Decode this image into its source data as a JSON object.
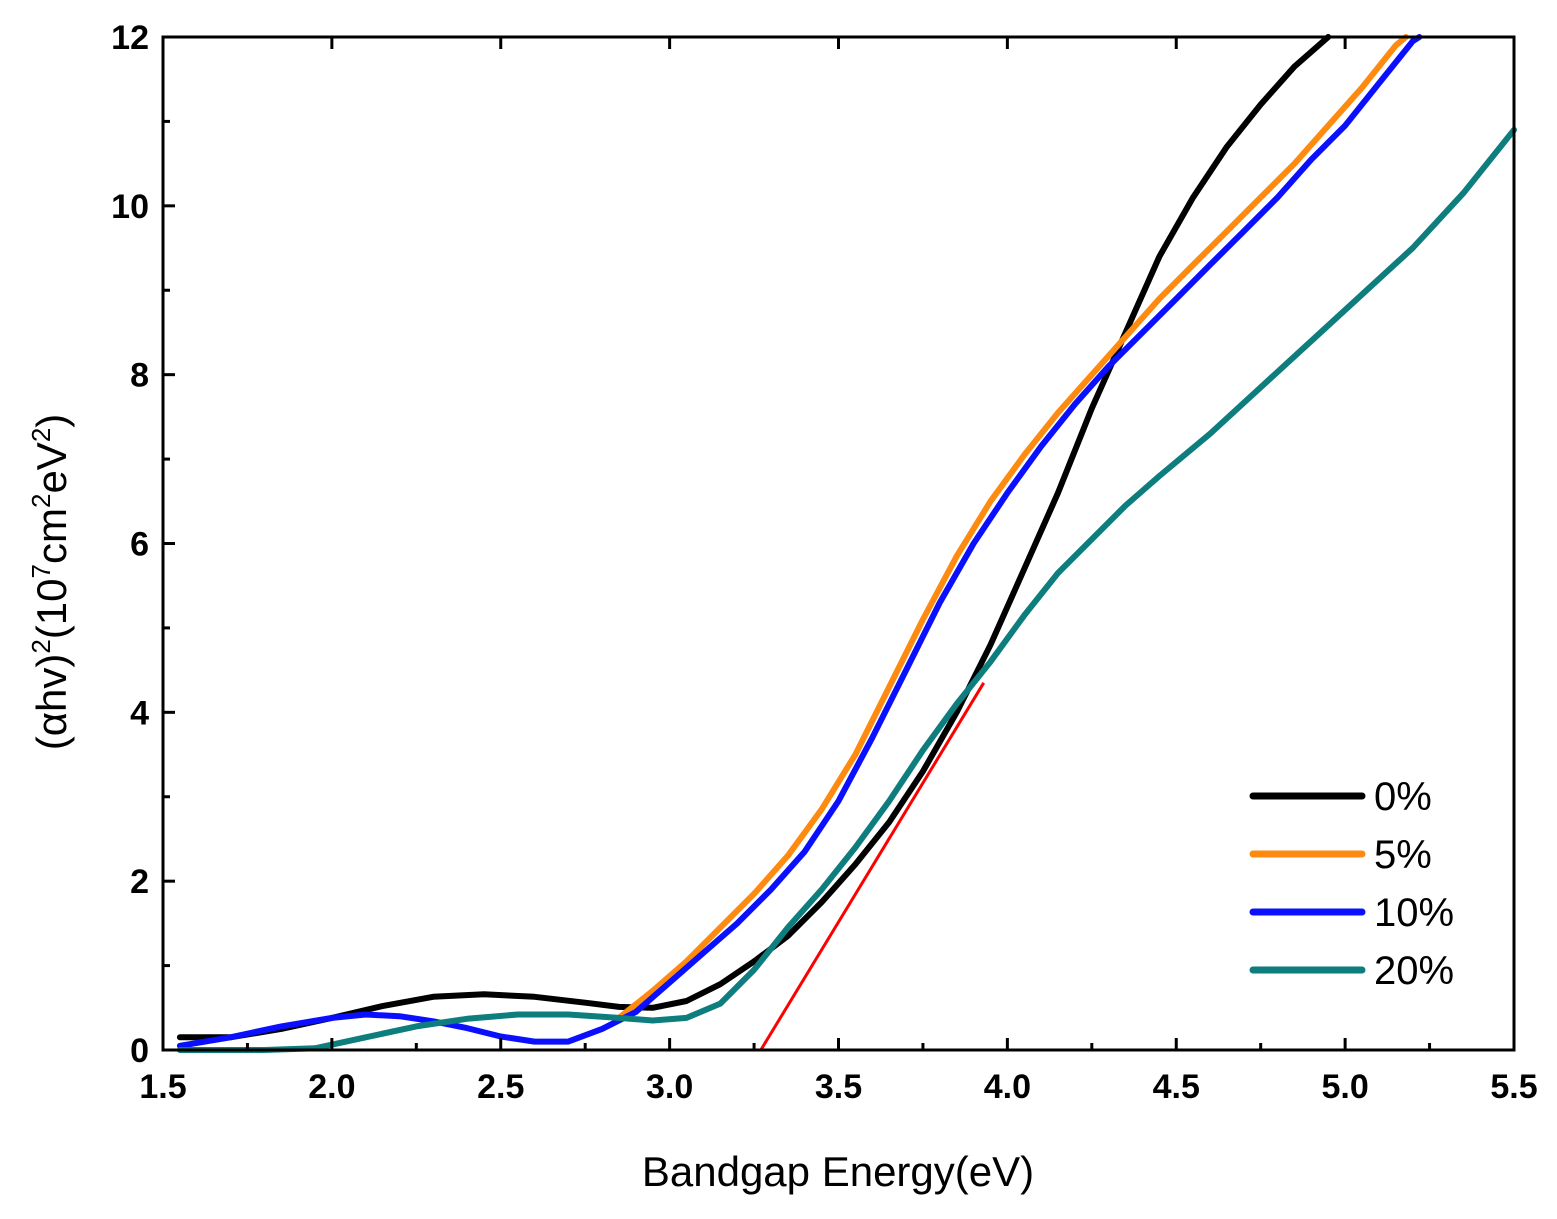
{
  "chart_data": {
    "type": "line",
    "title": "",
    "xlabel": "Bandgap Energy(eV)",
    "ylabel": {
      "open": "(",
      "alpha": "α",
      "hv": "hv)",
      "sup1": "2",
      "mid": "(10",
      "sup2": "7",
      "cm": "cm",
      "sup3": "2",
      "ev": "eV",
      "sup4": "2",
      "close": ")"
    },
    "xlim": [
      1.5,
      5.5
    ],
    "ylim": [
      0,
      12
    ],
    "xticks": [
      "1.5",
      "2.0",
      "2.5",
      "3.0",
      "3.5",
      "4.0",
      "4.5",
      "5.0",
      "5.5"
    ],
    "yticks": [
      "0",
      "2",
      "4",
      "6",
      "8",
      "10",
      "12"
    ],
    "legend_position": "bottom-right",
    "series": [
      {
        "name": "0%",
        "color": "#000000",
        "points": [
          [
            1.55,
            0.15
          ],
          [
            1.7,
            0.15
          ],
          [
            1.85,
            0.25
          ],
          [
            2.0,
            0.38
          ],
          [
            2.15,
            0.52
          ],
          [
            2.3,
            0.63
          ],
          [
            2.45,
            0.66
          ],
          [
            2.6,
            0.63
          ],
          [
            2.75,
            0.56
          ],
          [
            2.85,
            0.51
          ],
          [
            2.95,
            0.5
          ],
          [
            3.05,
            0.58
          ],
          [
            3.15,
            0.78
          ],
          [
            3.25,
            1.05
          ],
          [
            3.35,
            1.35
          ],
          [
            3.45,
            1.75
          ],
          [
            3.55,
            2.2
          ],
          [
            3.65,
            2.7
          ],
          [
            3.75,
            3.3
          ],
          [
            3.85,
            4.0
          ],
          [
            3.95,
            4.8
          ],
          [
            4.05,
            5.7
          ],
          [
            4.15,
            6.6
          ],
          [
            4.25,
            7.6
          ],
          [
            4.35,
            8.5
          ],
          [
            4.45,
            9.4
          ],
          [
            4.55,
            10.1
          ],
          [
            4.65,
            10.7
          ],
          [
            4.75,
            11.2
          ],
          [
            4.85,
            11.65
          ],
          [
            4.95,
            12.0
          ]
        ]
      },
      {
        "name": "5%",
        "color": "#ff8a10",
        "points": [
          [
            2.85,
            0.38
          ],
          [
            2.95,
            0.7
          ],
          [
            3.05,
            1.05
          ],
          [
            3.15,
            1.45
          ],
          [
            3.25,
            1.85
          ],
          [
            3.35,
            2.3
          ],
          [
            3.45,
            2.85
          ],
          [
            3.55,
            3.5
          ],
          [
            3.65,
            4.3
          ],
          [
            3.75,
            5.1
          ],
          [
            3.85,
            5.85
          ],
          [
            3.95,
            6.5
          ],
          [
            4.05,
            7.05
          ],
          [
            4.15,
            7.55
          ],
          [
            4.25,
            8.0
          ],
          [
            4.35,
            8.45
          ],
          [
            4.45,
            8.9
          ],
          [
            4.55,
            9.3
          ],
          [
            4.65,
            9.7
          ],
          [
            4.75,
            10.1
          ],
          [
            4.85,
            10.5
          ],
          [
            4.95,
            10.95
          ],
          [
            5.05,
            11.4
          ],
          [
            5.15,
            11.9
          ],
          [
            5.18,
            12.0
          ]
        ]
      },
      {
        "name": "10%",
        "color": "#0a10ff",
        "points": [
          [
            1.55,
            0.05
          ],
          [
            1.7,
            0.15
          ],
          [
            1.85,
            0.28
          ],
          [
            2.0,
            0.38
          ],
          [
            2.1,
            0.42
          ],
          [
            2.2,
            0.4
          ],
          [
            2.3,
            0.34
          ],
          [
            2.4,
            0.26
          ],
          [
            2.5,
            0.16
          ],
          [
            2.6,
            0.1
          ],
          [
            2.7,
            0.1
          ],
          [
            2.8,
            0.25
          ],
          [
            2.9,
            0.45
          ],
          [
            3.0,
            0.8
          ],
          [
            3.1,
            1.15
          ],
          [
            3.2,
            1.5
          ],
          [
            3.3,
            1.9
          ],
          [
            3.4,
            2.35
          ],
          [
            3.5,
            2.95
          ],
          [
            3.6,
            3.7
          ],
          [
            3.7,
            4.5
          ],
          [
            3.8,
            5.3
          ],
          [
            3.9,
            6.0
          ],
          [
            4.0,
            6.6
          ],
          [
            4.1,
            7.15
          ],
          [
            4.2,
            7.65
          ],
          [
            4.3,
            8.1
          ],
          [
            4.4,
            8.5
          ],
          [
            4.5,
            8.9
          ],
          [
            4.6,
            9.3
          ],
          [
            4.7,
            9.7
          ],
          [
            4.8,
            10.1
          ],
          [
            4.9,
            10.55
          ],
          [
            5.0,
            10.95
          ],
          [
            5.1,
            11.45
          ],
          [
            5.2,
            11.95
          ],
          [
            5.22,
            12.0
          ]
        ]
      },
      {
        "name": "20%",
        "color": "#0e7d7d",
        "points": [
          [
            1.55,
            0.0
          ],
          [
            1.8,
            0.0
          ],
          [
            1.95,
            0.02
          ],
          [
            2.1,
            0.15
          ],
          [
            2.25,
            0.28
          ],
          [
            2.4,
            0.37
          ],
          [
            2.55,
            0.42
          ],
          [
            2.7,
            0.42
          ],
          [
            2.85,
            0.38
          ],
          [
            2.95,
            0.35
          ],
          [
            3.05,
            0.38
          ],
          [
            3.15,
            0.55
          ],
          [
            3.25,
            0.95
          ],
          [
            3.35,
            1.45
          ],
          [
            3.45,
            1.9
          ],
          [
            3.55,
            2.4
          ],
          [
            3.65,
            2.95
          ],
          [
            3.75,
            3.55
          ],
          [
            3.85,
            4.1
          ],
          [
            3.95,
            4.6
          ],
          [
            4.05,
            5.15
          ],
          [
            4.15,
            5.65
          ],
          [
            4.25,
            6.05
          ],
          [
            4.35,
            6.45
          ],
          [
            4.45,
            6.8
          ],
          [
            4.6,
            7.3
          ],
          [
            4.75,
            7.85
          ],
          [
            4.9,
            8.4
          ],
          [
            5.05,
            8.95
          ],
          [
            5.2,
            9.5
          ],
          [
            5.35,
            10.15
          ],
          [
            5.5,
            10.9
          ]
        ]
      }
    ],
    "fit_line": {
      "color": "#ff0000",
      "points": [
        [
          3.27,
          0.0
        ],
        [
          3.93,
          4.35
        ]
      ]
    }
  }
}
